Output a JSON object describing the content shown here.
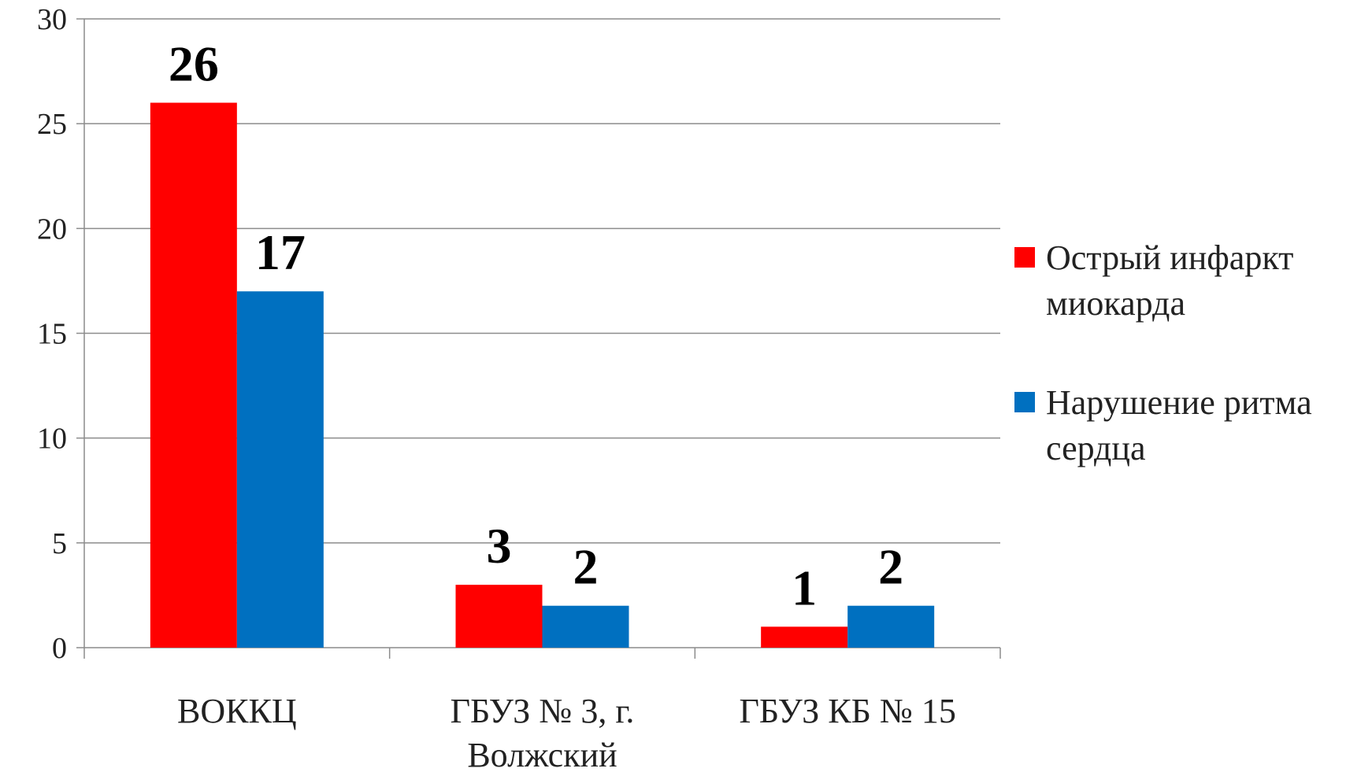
{
  "chart_data": {
    "type": "bar",
    "categories": [
      [
        "ВОККЦ"
      ],
      [
        "ГБУЗ № 3, г.",
        "Волжский"
      ],
      [
        "ГБУЗ КБ № 15"
      ]
    ],
    "series": [
      {
        "name": [
          "Острый инфаркт",
          "миокарда"
        ],
        "color": "#ff0000",
        "values": [
          26,
          3,
          1
        ]
      },
      {
        "name": [
          "Нарушение ритма",
          "сердца"
        ],
        "color": "#0070c0",
        "values": [
          17,
          2,
          2
        ]
      }
    ],
    "y_ticks": [
      "0",
      "5",
      "10",
      "15",
      "20",
      "25",
      "30"
    ],
    "ylim": [
      0,
      30
    ],
    "title": "",
    "xlabel": "",
    "ylabel": "",
    "grid": true,
    "data_labels": true,
    "legend_position": "right"
  }
}
